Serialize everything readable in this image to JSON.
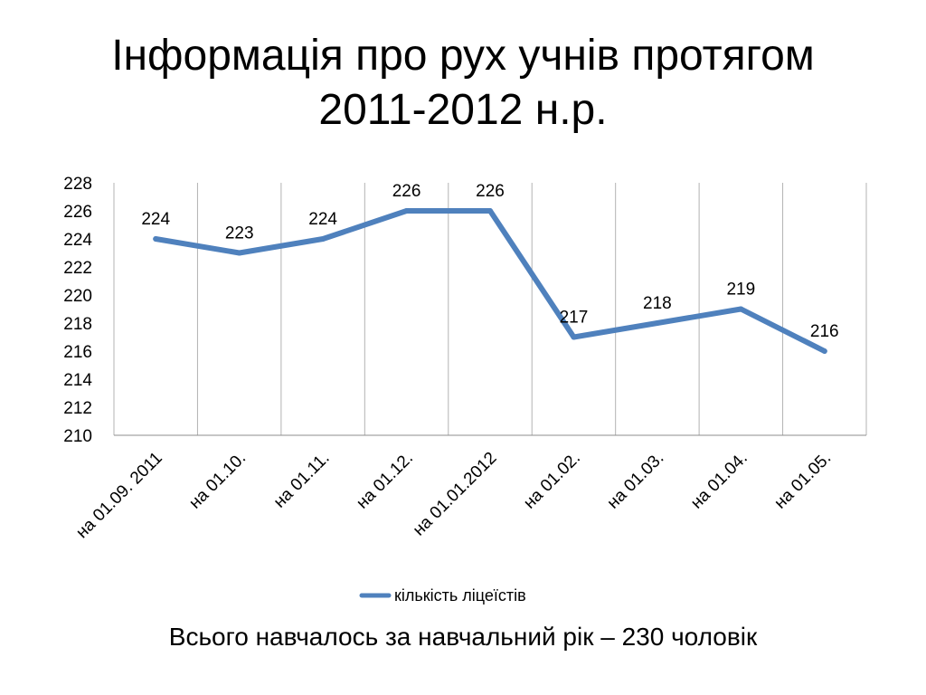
{
  "slide": {
    "title_line1": "Інформація про рух учнів протягом",
    "title_line2": "2011-2012 н.р.",
    "footer": "Всього навчалось за навчальний рік – 230 чоловік"
  },
  "chart_data": {
    "type": "line",
    "categories": [
      "на 01.09. 2011",
      "на 01.10.",
      "на 01.11.",
      "на 01.12.",
      "на 01.01.2012",
      "на 01.02.",
      "на 01.03.",
      "на 01.04.",
      "на 01.05."
    ],
    "series": [
      {
        "name": "кількість ліцеїстів",
        "values": [
          224,
          223,
          224,
          226,
          226,
          217,
          218,
          219,
          216
        ],
        "color": "#4f81bd"
      }
    ],
    "ylim": [
      210,
      228
    ],
    "yticks": [
      210,
      212,
      214,
      216,
      218,
      220,
      222,
      224,
      226,
      228
    ],
    "grid": "vertical",
    "legend": "bottom",
    "data_labels": true
  }
}
